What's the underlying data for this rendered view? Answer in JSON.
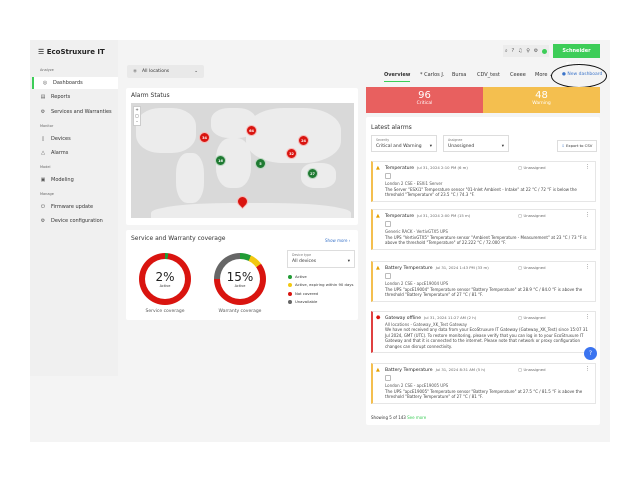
{
  "app": {
    "logo": "EcoStruxure IT",
    "brand": "Schneider Electric"
  },
  "topbar": {
    "icons": [
      "search-icon",
      "help-icon",
      "bell-icon",
      "lightbulb-icon",
      "settings-icon",
      "status-dot-icon"
    ]
  },
  "sidebar": {
    "sections": [
      {
        "label": "Analyze",
        "items": [
          {
            "label": "Dashboards",
            "icon": "dashboard-icon",
            "active": true
          },
          {
            "label": "Reports",
            "icon": "report-icon"
          },
          {
            "label": "Services and Warranties",
            "icon": "services-icon"
          }
        ]
      },
      {
        "label": "Monitor",
        "items": [
          {
            "label": "Devices",
            "icon": "device-icon"
          },
          {
            "label": "Alarms",
            "icon": "alarm-icon"
          }
        ]
      },
      {
        "label": "Model",
        "items": [
          {
            "label": "Modeling",
            "icon": "modeling-icon"
          }
        ]
      },
      {
        "label": "Manage",
        "items": [
          {
            "label": "Firmware update",
            "icon": "firmware-icon"
          },
          {
            "label": "Device configuration",
            "icon": "config-icon"
          }
        ]
      }
    ]
  },
  "location": {
    "value": "All locations"
  },
  "tabs": {
    "items": [
      "Overview",
      "* Carlos J.",
      "Bursa",
      "CDV_test",
      "Ceeee",
      "More"
    ],
    "active": "Overview",
    "new_dashboard": "New dashboard"
  },
  "alarm_status": {
    "title": "Alarm Status",
    "markers": [
      {
        "count": "34",
        "status": "critical"
      },
      {
        "count": "64",
        "status": "critical"
      },
      {
        "count": "24",
        "status": "critical"
      },
      {
        "count": "32",
        "status": "critical"
      },
      {
        "count": "16",
        "status": "ok"
      },
      {
        "count": "5",
        "status": "ok"
      },
      {
        "count": "27",
        "status": "ok"
      },
      {
        "count": "8",
        "status": "critical"
      }
    ]
  },
  "coverage": {
    "title": "Service and Warranty coverage",
    "show_more": "Show more",
    "service": {
      "value": "2%",
      "label": "Active",
      "caption": "Service coverage",
      "segments": [
        2,
        98
      ]
    },
    "warranty": {
      "value": "15%",
      "label": "Active",
      "caption": "Warranty coverage",
      "segments": [
        7,
        8,
        60,
        25
      ]
    },
    "device_type": {
      "label": "Device type",
      "value": "All devices"
    },
    "legend": [
      {
        "label": "Active",
        "color": "#219b35"
      },
      {
        "label": "Active, expiring within 90 days",
        "color": "#f2c811"
      },
      {
        "label": "Not covered",
        "color": "#d9140f"
      },
      {
        "label": "Unavailable",
        "color": "#666666"
      }
    ]
  },
  "kpis": {
    "critical": {
      "value": "96",
      "label": "Critical",
      "color": "#e8605f"
    },
    "warning": {
      "value": "48",
      "label": "Warning",
      "color": "#f4bf4f"
    }
  },
  "latest": {
    "title": "Latest alarms",
    "severity": {
      "label": "Severity",
      "value": "Critical and Warning"
    },
    "assignee": {
      "label": "Assignee",
      "value": "Unassigned"
    },
    "export": "Export to CSV",
    "alarms": [
      {
        "title": "Temperature",
        "time": "Jul 31, 2024 2:10 PM (6 m)",
        "assignee": "Unassigned",
        "location": "London 2 CSE - ESXi1 Server",
        "desc": "The Server \"ESXi1\" Temperature sensor \"01-Inlet Ambient - Intake\" at 22 °C / 72 °F is below the threshold \"Temperature\" of 23.5 °C / 74.3 °F.",
        "severity": "warning"
      },
      {
        "title": "Temperature",
        "time": "Jul 31, 2024 2:00 PM (15 m)",
        "assignee": "Unassigned",
        "location": "Generic RACK - VertivGTX5 UPS",
        "desc": "The UPS \"VertivGTX5\" Temperature sensor \"Ambient Temperature - Measurement\" at 23 °C / 73 °F is above the threshold \"Temperature\" of 22.222 °C / 72.000 °F.",
        "severity": "warning"
      },
      {
        "title": "Battery Temperature",
        "time": "Jul 31, 2024 1:43 PM (33 m)",
        "assignee": "Unassigned",
        "location": "London 2 CSE - apcE19004 UPS",
        "desc": "The UPS \"apcE19004\" Temperature sensor \"Battery Temperature\" at 28.9 °C / 84.0 °F is above the threshold \"Battery Temperature\" of 27 °C / 81 °F.",
        "severity": "warning"
      },
      {
        "title": "Gateway offline",
        "time": "Jul 31, 2024 11:27 AM (2 h)",
        "assignee": "Unassigned",
        "location": "All locations - Gateway_XK_Test Gateway",
        "desc": "We have not received any data from your EcoStruxure IT Gateway (Gateway_XK_Test) since 15:07 31 Jul 2024, GMT (UTC). To restore monitoring, please verify that you can log in to your EcoStruxure IT Gateway and that it is connected to the internet. Please note that network or proxy configuration changes can disrupt connectivity.",
        "severity": "critical"
      },
      {
        "title": "Battery Temperature",
        "time": "Jul 31, 2024 8:31 AM (5 h)",
        "assignee": "Unassigned",
        "location": "London 2 CSE - apcE19005 UPS",
        "desc": "The UPS \"apcE19005\" Temperature sensor \"Battery Temperature\" at 27.5 °C / 81.5 °F is above the threshold \"Battery Temperature\" of 27 °C / 81 °F.",
        "severity": "warning"
      }
    ],
    "showing": "Showing 5 of 143",
    "see_more": "See more"
  }
}
